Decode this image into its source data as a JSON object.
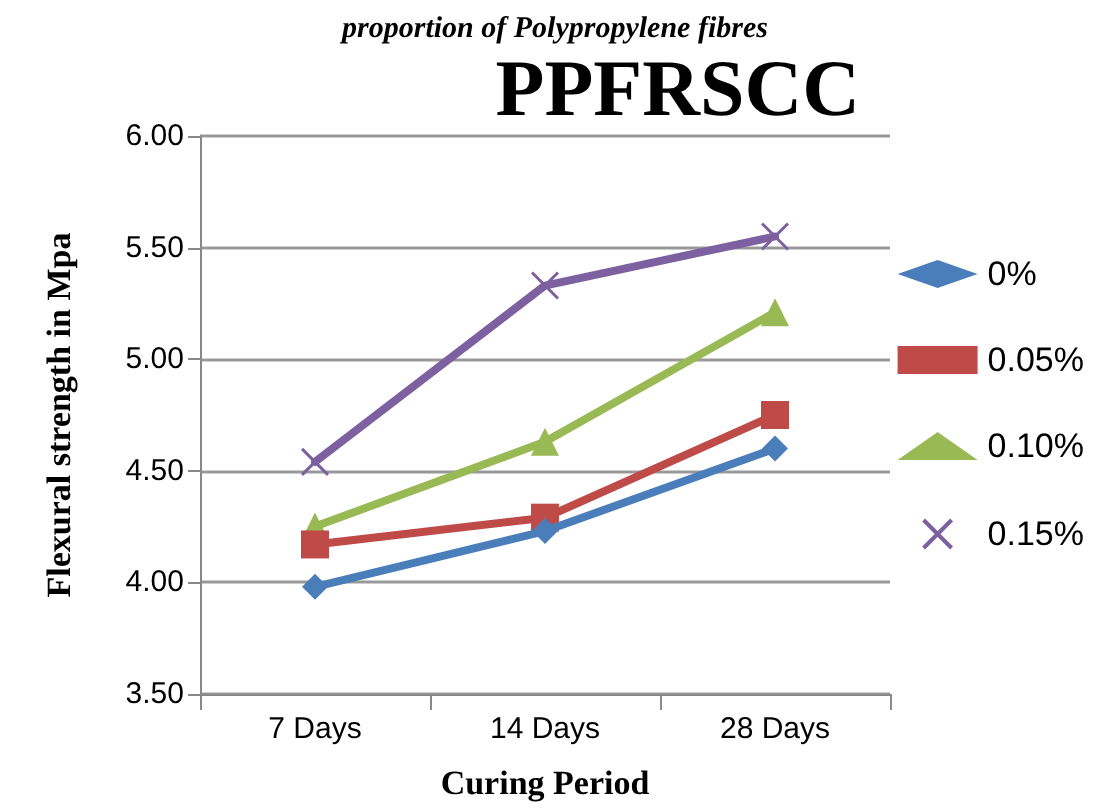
{
  "chart_data": {
    "type": "line",
    "title": "proportion of Polypropylene fibres",
    "xlabel": "Curing Period",
    "ylabel": "Flexural strength in Mpa",
    "annotations": [
      "PPFRSCC"
    ],
    "categories": [
      "7 Days",
      "14 Days",
      "28 Days"
    ],
    "series": [
      {
        "name": "0%",
        "color": "#4a7ebb",
        "marker": "diamond",
        "values": [
          3.98,
          4.23,
          4.6
        ]
      },
      {
        "name": "0.05%",
        "color": "#be4b48",
        "marker": "square",
        "values": [
          4.17,
          4.29,
          4.75
        ]
      },
      {
        "name": "0.10%",
        "color": "#98b954",
        "marker": "triangle",
        "values": [
          4.25,
          4.63,
          5.21
        ]
      },
      {
        "name": "0.15%",
        "color": "#7d60a0",
        "marker": "cross",
        "values": [
          4.54,
          5.33,
          5.55
        ]
      }
    ],
    "ylim": [
      3.5,
      6
    ],
    "yticks": [
      {
        "value": 3.5,
        "label": "3.50"
      },
      {
        "value": 4,
        "label": "4.00"
      },
      {
        "value": 4.5,
        "label": "4.50"
      },
      {
        "value": 5,
        "label": "5.00"
      },
      {
        "value": 5.5,
        "label": "5.50"
      },
      {
        "value": 6,
        "label": "6.00"
      }
    ],
    "grid": "y",
    "legend": "right",
    "line_style": "solid"
  }
}
